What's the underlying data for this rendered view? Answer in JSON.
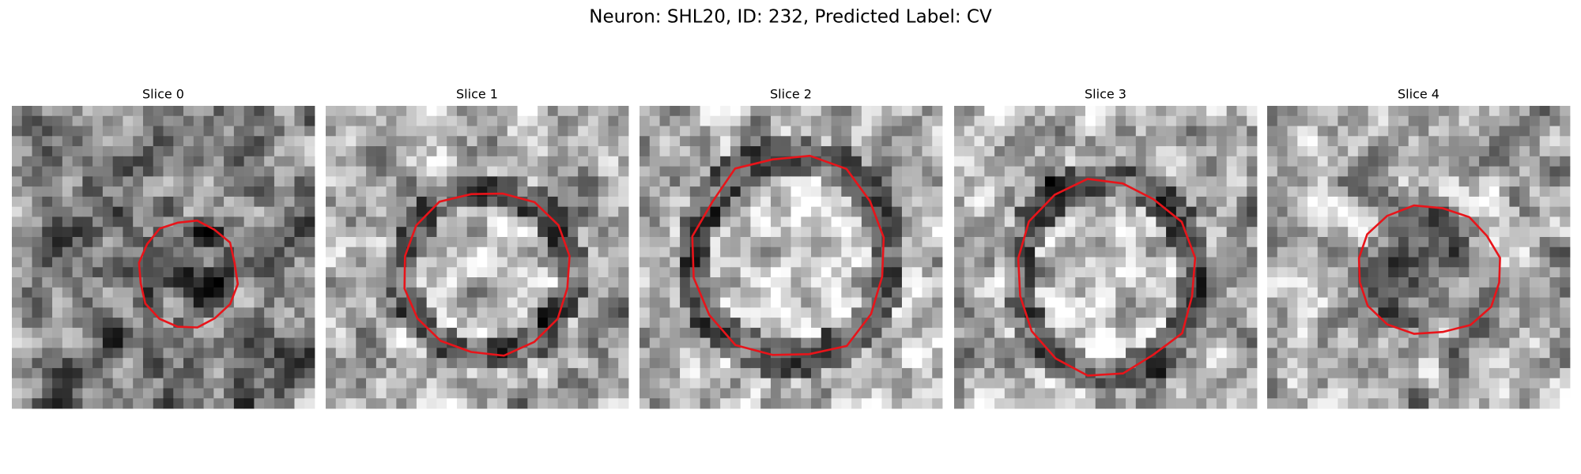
{
  "figure": {
    "title": "Neuron: SHL20, ID: 232, Predicted Label: CV",
    "panels": [
      {
        "title": "Slice 0"
      },
      {
        "title": "Slice 1"
      },
      {
        "title": "Slice 2"
      },
      {
        "title": "Slice 3"
      },
      {
        "title": "Slice 4"
      }
    ]
  }
}
